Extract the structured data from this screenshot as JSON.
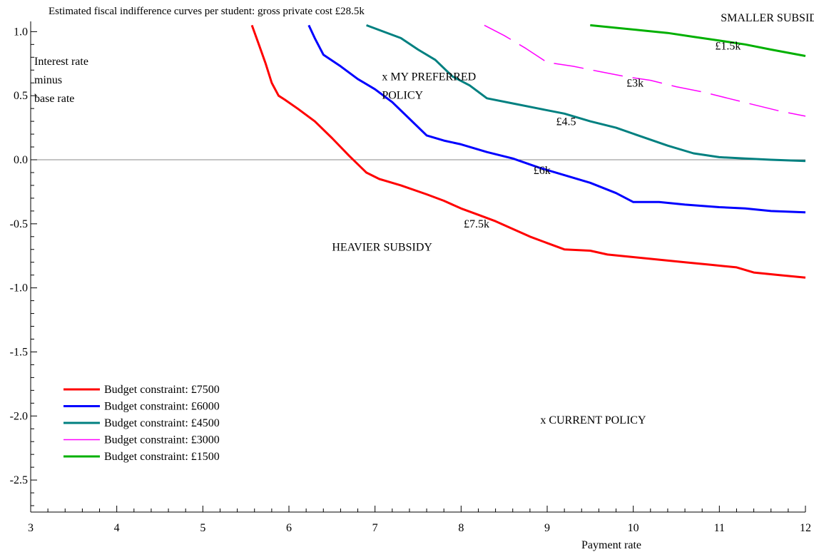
{
  "chart_data": {
    "type": "line",
    "title": "Estimated fiscal indifference curves per student: gross private cost £28.5k",
    "xlabel": "Payment rate",
    "ylabel_lines": [
      "Interest rate",
      "minus",
      "base rate"
    ],
    "xlim": [
      3,
      12
    ],
    "ylim": [
      -2.75,
      1.08
    ],
    "xticks": [
      3,
      4,
      5,
      6,
      7,
      8,
      9,
      10,
      11,
      12
    ],
    "xtick_labels": [
      "3",
      "4",
      "5",
      "6",
      "7",
      "8",
      "9",
      "10",
      "11",
      "12"
    ],
    "yticks": [
      1.0,
      0.5,
      0.0,
      -0.5,
      -1.0,
      -1.5,
      -2.0,
      -2.5
    ],
    "ytick_labels": [
      "1.0",
      "0.5",
      "0.0",
      "-0.5",
      "-1.0",
      "-1.5",
      "-2.0",
      "-2.5"
    ],
    "zero_line": true,
    "legend": {
      "placement": "bottom-left",
      "entries": [
        "Budget constraint: £7500",
        "Budget constraint: £6000",
        "Budget constraint: £4500",
        "Budget constraint: £3000",
        "Budget constraint: £1500"
      ]
    },
    "series": [
      {
        "name": "Budget constraint: £7500",
        "color": "#ff0000",
        "style": "solid",
        "x": [
          5.57,
          5.65,
          5.73,
          5.8,
          5.88,
          5.95,
          6.1,
          6.3,
          6.5,
          6.7,
          6.9,
          7.05,
          7.3,
          7.6,
          7.8,
          8.0,
          8.2,
          8.4,
          8.6,
          8.8,
          9.0,
          9.2,
          9.5,
          9.7,
          10.0,
          10.3,
          10.6,
          10.9,
          11.2,
          11.4,
          11.7,
          12.0
        ],
        "y": [
          1.05,
          0.9,
          0.75,
          0.6,
          0.5,
          0.47,
          0.4,
          0.3,
          0.17,
          0.03,
          -0.1,
          -0.15,
          -0.2,
          -0.27,
          -0.32,
          -0.38,
          -0.43,
          -0.48,
          -0.54,
          -0.6,
          -0.65,
          -0.7,
          -0.71,
          -0.74,
          -0.76,
          -0.78,
          -0.8,
          -0.82,
          -0.84,
          -0.88,
          -0.9,
          -0.92
        ]
      },
      {
        "name": "Budget constraint: £6000",
        "color": "#0000ff",
        "style": "solid",
        "x": [
          6.23,
          6.3,
          6.4,
          6.6,
          6.8,
          7.0,
          7.2,
          7.4,
          7.6,
          7.8,
          8.0,
          8.3,
          8.6,
          8.9,
          9.2,
          9.5,
          9.8,
          10.0,
          10.3,
          10.6,
          11.0,
          11.3,
          11.6,
          12.0
        ],
        "y": [
          1.05,
          0.95,
          0.82,
          0.73,
          0.63,
          0.55,
          0.45,
          0.32,
          0.19,
          0.15,
          0.12,
          0.06,
          0.01,
          -0.06,
          -0.12,
          -0.18,
          -0.26,
          -0.33,
          -0.33,
          -0.35,
          -0.37,
          -0.38,
          -0.4,
          -0.41
        ]
      },
      {
        "name": "Budget constraint: £4500",
        "color": "#008080",
        "style": "solid",
        "x": [
          6.9,
          7.1,
          7.3,
          7.5,
          7.7,
          7.9,
          8.1,
          8.3,
          8.6,
          8.9,
          9.2,
          9.5,
          9.8,
          10.1,
          10.4,
          10.7,
          11.0,
          11.3,
          11.6,
          12.0
        ],
        "y": [
          1.05,
          1.0,
          0.95,
          0.86,
          0.78,
          0.65,
          0.58,
          0.48,
          0.44,
          0.4,
          0.36,
          0.3,
          0.25,
          0.18,
          0.11,
          0.05,
          0.02,
          0.01,
          0.0,
          -0.01
        ]
      },
      {
        "name": "Budget constraint: £3000",
        "color": "#ff00ff",
        "style": "dashed",
        "x": [
          8.27,
          8.5,
          8.75,
          9.0,
          9.3,
          9.6,
          9.9,
          10.2,
          10.5,
          10.8,
          11.1,
          11.4,
          11.7,
          12.0
        ],
        "y": [
          1.05,
          0.97,
          0.87,
          0.76,
          0.73,
          0.69,
          0.65,
          0.62,
          0.57,
          0.53,
          0.48,
          0.43,
          0.38,
          0.34
        ]
      },
      {
        "name": "Budget constraint: £1500",
        "color": "#00b000",
        "style": "solid",
        "x": [
          9.5,
          9.8,
          10.1,
          10.4,
          10.7,
          11.0,
          11.3,
          11.6,
          12.0
        ],
        "y": [
          1.05,
          1.03,
          1.01,
          0.99,
          0.96,
          0.93,
          0.9,
          0.86,
          0.81
        ]
      }
    ],
    "curve_labels": [
      {
        "text": "£1.5k",
        "x": 11.1,
        "y": 0.86
      },
      {
        "text": "£3k",
        "x": 10.02,
        "y": 0.57
      },
      {
        "text": "£4.5",
        "x": 9.22,
        "y": 0.27
      },
      {
        "text": "£6k",
        "x": 8.94,
        "y": -0.11
      },
      {
        "text": "£7.5k",
        "x": 8.18,
        "y": -0.53
      }
    ],
    "annotations": [
      {
        "lines": [
          "SMALLER SUBSIDY"
        ],
        "x": 11.75,
        "y": 1.08
      },
      {
        "lines": [
          "x MY PREFERRED",
          "POLICY"
        ],
        "x": 7.08,
        "y": 0.62
      },
      {
        "lines": [
          "HEAVIER SUBSIDY"
        ],
        "x": 6.5,
        "y": -0.71
      },
      {
        "lines": [
          "x CURRENT POLICY"
        ],
        "x": 8.92,
        "y": -2.06
      }
    ]
  }
}
